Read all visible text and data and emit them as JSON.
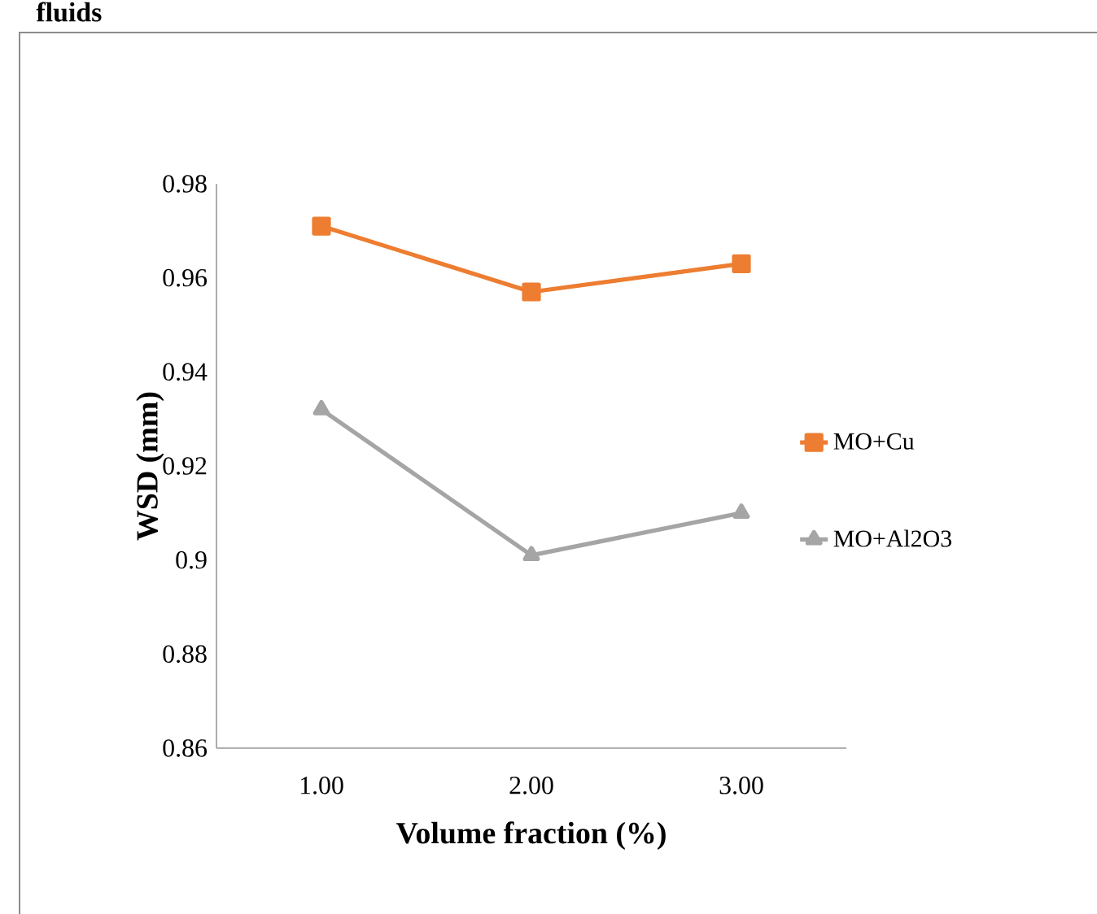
{
  "chart_data": {
    "type": "line",
    "xlabel": "Volume fraction (%)",
    "ylabel": "WSD (mm)",
    "annotations": [
      "fluids"
    ],
    "categories": [
      "1.00",
      "2.00",
      "3.00"
    ],
    "series": [
      {
        "name": "MO+Cu",
        "color": "#ed7d31",
        "marker": "square",
        "values": [
          0.971,
          0.957,
          0.963
        ]
      },
      {
        "name": "MO+Al2O3",
        "color": "#a5a5a5",
        "marker": "triangle",
        "values": [
          0.932,
          0.901,
          0.91
        ]
      }
    ],
    "ylim": [
      0.86,
      0.98
    ],
    "yticks": [
      {
        "value": 0.86,
        "label": "0.86"
      },
      {
        "value": 0.88,
        "label": "0.88"
      },
      {
        "value": 0.9,
        "label": "0.9"
      },
      {
        "value": 0.92,
        "label": "0.92"
      },
      {
        "value": 0.94,
        "label": "0.94"
      },
      {
        "value": 0.96,
        "label": "0.96"
      },
      {
        "value": 0.98,
        "label": "0.98"
      }
    ],
    "grid": false,
    "legend": "right",
    "line_style": "solid"
  }
}
